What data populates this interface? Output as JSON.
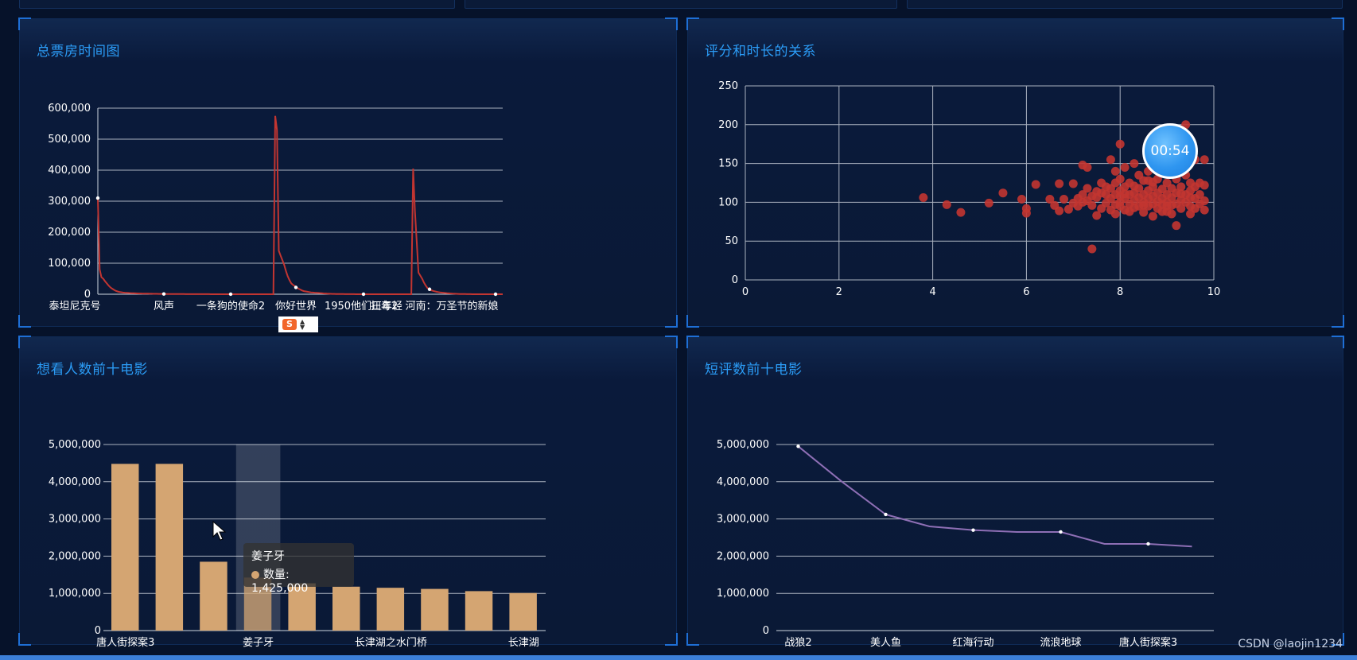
{
  "panels": {
    "box_office": {
      "title": "总票房时间图"
    },
    "rating_duration": {
      "title": "评分和时长的关系"
    },
    "want_to_see": {
      "title": "想看人数前十电影"
    },
    "short_reviews": {
      "title": "短评数前十电影"
    }
  },
  "timer": {
    "text": "00:54"
  },
  "tooltip": {
    "title": "姜子牙",
    "series": "数量",
    "value": "1,425,000",
    "dot_color": "#d4a572"
  },
  "ime": {
    "logo_text": "S"
  },
  "watermark": "CSDN @laojin1234",
  "colors": {
    "line_red": "#c23531",
    "bar": "#d4a572",
    "line_purple": "#8e6fb5",
    "title": "#2b9cf6"
  },
  "chart_data": [
    {
      "type": "line",
      "ylim": [
        0,
        600000
      ],
      "yticks": [
        0,
        100000,
        200000,
        300000,
        400000,
        500000,
        600000
      ],
      "ytick_labels": [
        "0",
        "100,000",
        "200,000",
        "300,000",
        "400,000",
        "500,000",
        "600,000"
      ],
      "xtick_labels": [
        "泰坦尼克号",
        "风声",
        "一条狗的使命2",
        "你好世界",
        "1950他们正年轻",
        "扫毒2",
        "河南：万圣节的新娘"
      ],
      "values": [
        310000,
        80000,
        55000,
        50000,
        42000,
        35000,
        28000,
        22000,
        18000,
        14000,
        11000,
        9000,
        7500,
        6500,
        5500,
        5000,
        4500,
        4000,
        3600,
        3200,
        3000,
        2800,
        2600,
        2400,
        2200,
        2000,
        1900,
        1800,
        1700,
        1600,
        1500,
        1400,
        1300,
        1200,
        1100,
        1000,
        950,
        900,
        850,
        800,
        750,
        700,
        650,
        600,
        560,
        520,
        480,
        440,
        400,
        370,
        340,
        310,
        290,
        270,
        250,
        230,
        210,
        190,
        175,
        160,
        150,
        140,
        130,
        120,
        110,
        100,
        95,
        90,
        85,
        80,
        75,
        70,
        65,
        60,
        55,
        50,
        48,
        46,
        44,
        42,
        40,
        38,
        36,
        34,
        32,
        30,
        28,
        26,
        24,
        22,
        20,
        18,
        16,
        14,
        12,
        10,
        8,
        6,
        4,
        575000,
        530000,
        140000,
        125000,
        110000,
        95000,
        75000,
        58000,
        45000,
        35000,
        30000,
        26000,
        22000,
        18000,
        15000,
        12000,
        10000,
        9000,
        8000,
        7000,
        6000,
        5500,
        5000,
        4500,
        4000,
        3500,
        3000,
        2600,
        2200,
        1800,
        1500,
        1200,
        1000,
        900,
        800,
        700,
        600,
        500,
        400,
        350,
        300,
        250,
        200,
        170,
        140,
        110,
        90,
        70,
        50,
        30,
        20,
        10,
        5,
        3,
        2,
        1,
        0,
        0,
        0,
        0,
        0,
        0,
        0,
        0,
        0,
        0,
        0,
        0,
        0,
        0,
        0,
        0,
        0,
        0,
        0,
        0,
        0,
        405000,
        270000,
        170000,
        70000,
        60000,
        50000,
        38000,
        28000,
        20000,
        16000,
        13000,
        11000,
        9500,
        8000,
        7000,
        6000,
        5200,
        4500,
        3800,
        3200,
        2700,
        2200,
        1800,
        1500,
        1200,
        1000,
        800,
        650,
        500,
        400,
        300,
        220,
        160,
        100,
        60,
        30,
        10,
        0,
        0,
        0,
        0,
        0,
        0,
        0,
        0,
        0,
        0,
        0,
        0,
        0,
        0
      ]
    },
    {
      "type": "scatter",
      "xlim": [
        0,
        10
      ],
      "ylim": [
        0,
        250
      ],
      "xticks": [
        0,
        2,
        4,
        6,
        8,
        10
      ],
      "yticks": [
        0,
        50,
        100,
        150,
        200,
        250
      ],
      "points": [
        [
          3.8,
          106
        ],
        [
          4.3,
          97
        ],
        [
          4.6,
          87
        ],
        [
          5.2,
          99
        ],
        [
          5.5,
          112
        ],
        [
          5.9,
          104
        ],
        [
          6.0,
          92
        ],
        [
          6.0,
          86
        ],
        [
          6.2,
          123
        ],
        [
          6.5,
          104
        ],
        [
          6.6,
          96
        ],
        [
          6.7,
          89
        ],
        [
          6.7,
          124
        ],
        [
          6.8,
          104
        ],
        [
          6.9,
          91
        ],
        [
          7.0,
          124
        ],
        [
          7.0,
          99
        ],
        [
          7.1,
          105
        ],
        [
          7.1,
          95
        ],
        [
          7.2,
          110
        ],
        [
          7.2,
          148
        ],
        [
          7.3,
          145
        ],
        [
          7.3,
          102
        ],
        [
          7.3,
          118
        ],
        [
          7.4,
          96
        ],
        [
          7.4,
          40
        ],
        [
          7.5,
          106
        ],
        [
          7.5,
          83
        ],
        [
          7.5,
          114
        ],
        [
          7.6,
          125
        ],
        [
          7.6,
          92
        ],
        [
          7.7,
          110
        ],
        [
          7.7,
          99
        ],
        [
          7.7,
          120
        ],
        [
          7.8,
          118
        ],
        [
          7.8,
          155
        ],
        [
          7.8,
          105
        ],
        [
          7.8,
          90
        ],
        [
          7.9,
          110
        ],
        [
          7.9,
          125
        ],
        [
          7.9,
          140
        ],
        [
          7.9,
          85
        ],
        [
          8.0,
          175
        ],
        [
          8.0,
          100
        ],
        [
          8.0,
          95
        ],
        [
          8.0,
          115
        ],
        [
          8.0,
          130
        ],
        [
          8.1,
          105
        ],
        [
          8.1,
          90
        ],
        [
          8.1,
          120
        ],
        [
          8.1,
          145
        ],
        [
          8.2,
          110
        ],
        [
          8.2,
          98
        ],
        [
          8.2,
          125
        ],
        [
          8.2,
          88
        ],
        [
          8.3,
          150
        ],
        [
          8.3,
          112
        ],
        [
          8.3,
          102
        ],
        [
          8.3,
          93
        ],
        [
          8.4,
          118
        ],
        [
          8.4,
          135
        ],
        [
          8.4,
          106
        ],
        [
          8.4,
          95
        ],
        [
          8.5,
          110
        ],
        [
          8.5,
          100
        ],
        [
          8.5,
          128
        ],
        [
          8.5,
          87
        ],
        [
          8.6,
          140
        ],
        [
          8.6,
          105
        ],
        [
          8.6,
          115
        ],
        [
          8.6,
          95
        ],
        [
          8.7,
          120
        ],
        [
          8.7,
          108
        ],
        [
          8.7,
          98
        ],
        [
          8.7,
          82
        ],
        [
          8.8,
          112
        ],
        [
          8.8,
          130
        ],
        [
          8.8,
          101
        ],
        [
          8.8,
          92
        ],
        [
          8.9,
          117
        ],
        [
          8.9,
          105
        ],
        [
          8.9,
          145
        ],
        [
          8.9,
          88
        ],
        [
          9.0,
          110
        ],
        [
          9.0,
          100
        ],
        [
          9.0,
          125
        ],
        [
          9.0,
          95
        ],
        [
          9.1,
          118
        ],
        [
          9.1,
          85
        ],
        [
          9.1,
          106
        ],
        [
          9.2,
          130
        ],
        [
          9.2,
          98
        ],
        [
          9.2,
          112
        ],
        [
          9.2,
          70
        ],
        [
          9.3,
          103
        ],
        [
          9.3,
          120
        ],
        [
          9.3,
          92
        ],
        [
          9.4,
          200
        ],
        [
          9.4,
          110
        ],
        [
          9.4,
          135
        ],
        [
          9.4,
          100
        ],
        [
          9.5,
          115
        ],
        [
          9.5,
          95
        ],
        [
          9.5,
          125
        ],
        [
          9.5,
          85
        ],
        [
          9.6,
          105
        ],
        [
          9.6,
          155
        ],
        [
          9.6,
          120
        ],
        [
          9.6,
          92
        ],
        [
          9.7,
          110
        ],
        [
          9.7,
          98
        ],
        [
          9.8,
          155
        ],
        [
          9.8,
          122
        ],
        [
          9.8,
          102
        ],
        [
          9.8,
          90
        ],
        [
          7.2,
          100
        ],
        [
          7.6,
          112
        ],
        [
          7.9,
          97
        ],
        [
          8.1,
          111
        ],
        [
          8.3,
          121
        ],
        [
          8.5,
          96
        ],
        [
          8.7,
          126
        ],
        [
          8.9,
          97
        ],
        [
          9.1,
          96
        ],
        [
          9.3,
          111
        ],
        [
          9.5,
          106
        ],
        [
          9.7,
          125
        ],
        [
          7.4,
          108
        ],
        [
          8.0,
          108
        ],
        [
          8.6,
          128
        ],
        [
          9.0,
          88
        ]
      ]
    },
    {
      "type": "bar",
      "ylim": [
        0,
        5000000
      ],
      "yticks": [
        0,
        1000000,
        2000000,
        3000000,
        4000000,
        5000000
      ],
      "ytick_labels": [
        "0",
        "1,000,000",
        "2,000,000",
        "3,000,000",
        "4,000,000",
        "5,000,000"
      ],
      "xtick_labels": [
        "唐人街探案3",
        "姜子牙",
        "长津湖之水门桥",
        "长津湖"
      ],
      "series": [
        {
          "name": "数量",
          "values": [
            4480000,
            4480000,
            1850000,
            1425000,
            1270000,
            1180000,
            1150000,
            1120000,
            1060000,
            1010000
          ]
        }
      ],
      "highlight_index": 3
    },
    {
      "type": "line",
      "ylim": [
        0,
        5000000
      ],
      "yticks": [
        0,
        1000000,
        2000000,
        3000000,
        4000000,
        5000000
      ],
      "ytick_labels": [
        "0",
        "1,000,000",
        "2,000,000",
        "3,000,000",
        "4,000,000",
        "5,000,000"
      ],
      "xtick_labels": [
        "战狼2",
        "美人鱼",
        "红海行动",
        "流浪地球",
        "唐人街探案3"
      ],
      "values": [
        4950000,
        4000000,
        3120000,
        2800000,
        2700000,
        2650000,
        2650000,
        2330000,
        2330000,
        2260000
      ]
    }
  ]
}
